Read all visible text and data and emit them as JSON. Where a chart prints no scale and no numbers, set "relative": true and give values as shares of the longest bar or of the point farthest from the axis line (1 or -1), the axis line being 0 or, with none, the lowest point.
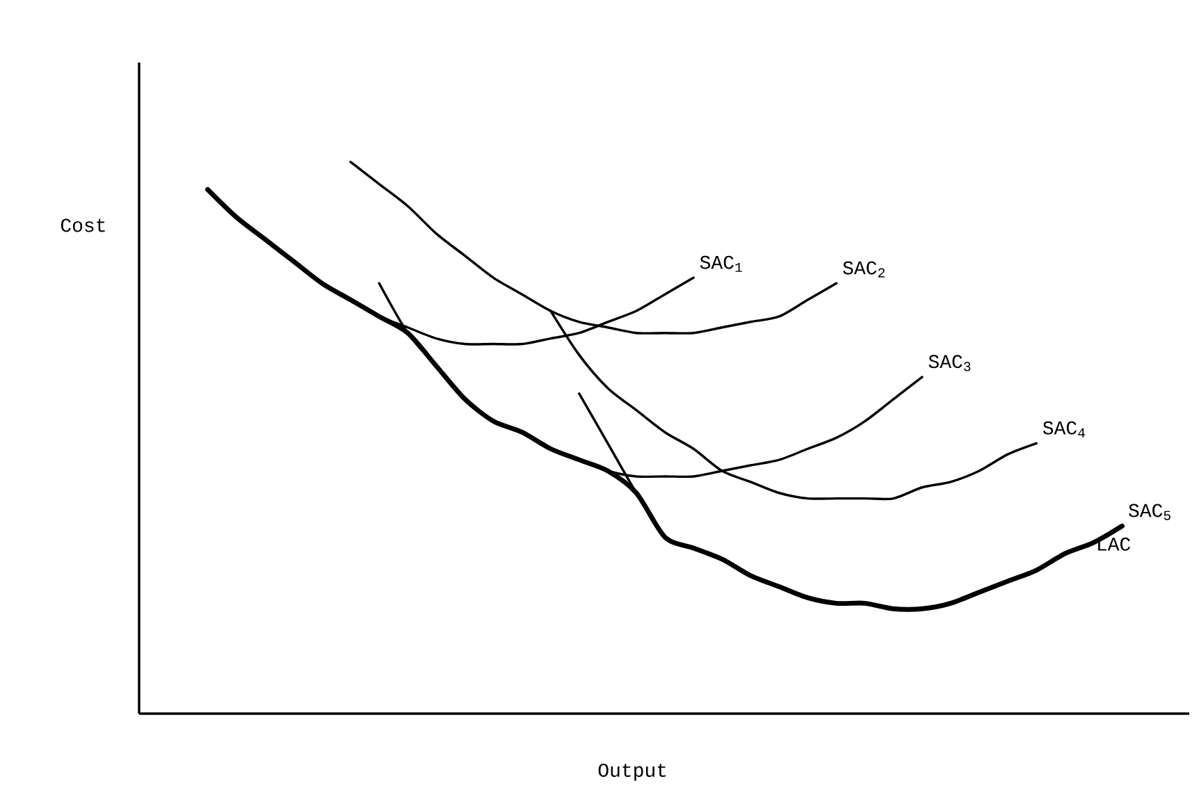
{
  "chart_data": {
    "type": "line",
    "relative": true,
    "xlabel": "Output",
    "ylabel": "Cost",
    "categories": [
      null,
      null,
      null,
      null,
      null,
      null,
      null,
      null,
      null,
      null,
      null,
      null,
      null,
      null,
      null,
      null,
      null,
      null,
      null,
      null,
      null,
      null,
      null,
      null,
      null,
      null,
      null,
      null,
      null,
      null,
      null,
      null,
      null
    ],
    "series": [
      {
        "name": "SAC$_{1}$",
        "color": "#000000",
        "values": [
          0.95,
          0.9,
          0.86,
          0.82,
          0.78,
          0.75,
          0.72,
          0.7,
          0.68,
          0.67,
          0.67,
          0.67,
          0.68,
          0.69,
          0.71,
          0.73,
          0.76,
          0.79,
          null,
          null,
          null,
          null,
          null,
          null,
          null,
          null,
          null,
          null,
          null,
          null,
          null,
          null,
          null
        ]
      },
      {
        "name": "SAC$_{2}$",
        "color": "#000000",
        "values": [
          null,
          null,
          null,
          null,
          null,
          1.0,
          0.96,
          0.92,
          0.87,
          0.83,
          0.79,
          0.76,
          0.73,
          0.71,
          0.7,
          0.69,
          0.69,
          0.69,
          0.7,
          0.71,
          0.72,
          0.75,
          0.78,
          null,
          null,
          null,
          null,
          null,
          null,
          null,
          null,
          null,
          null
        ]
      },
      {
        "name": "SAC$_{3}$",
        "color": "#000000",
        "values": [
          null,
          null,
          null,
          null,
          null,
          null,
          0.78,
          0.69,
          0.63,
          0.57,
          0.53,
          0.51,
          0.48,
          0.46,
          0.44,
          0.43,
          0.43,
          0.43,
          0.44,
          0.45,
          0.46,
          0.48,
          0.5,
          0.53,
          0.57,
          0.61,
          null,
          null,
          null,
          null,
          null,
          null,
          null
        ]
      },
      {
        "name": "SAC$_{4}$",
        "color": "#000000",
        "values": [
          null,
          null,
          null,
          null,
          null,
          null,
          null,
          null,
          null,
          null,
          null,
          null,
          0.73,
          0.65,
          0.59,
          0.55,
          0.51,
          0.48,
          0.44,
          0.42,
          0.4,
          0.39,
          0.39,
          0.39,
          0.39,
          0.41,
          0.42,
          0.44,
          0.47,
          0.49,
          null,
          null,
          null
        ]
      },
      {
        "name": "SAC$_{5}$",
        "color": "#000000",
        "values": [
          null,
          null,
          null,
          null,
          null,
          null,
          null,
          null,
          null,
          null,
          null,
          null,
          null,
          0.58,
          0.49,
          0.4,
          0.32,
          0.3,
          0.28,
          0.25,
          0.23,
          0.21,
          0.2,
          0.2,
          0.19,
          0.19,
          0.2,
          0.22,
          0.24,
          0.26,
          0.29,
          0.31,
          0.34
        ]
      },
      {
        "name": "LAC",
        "color": "#000000",
        "values": [
          0.95,
          0.9,
          0.86,
          0.82,
          0.78,
          0.75,
          0.72,
          0.69,
          0.63,
          0.57,
          0.53,
          0.51,
          0.48,
          0.46,
          0.44,
          0.4,
          0.32,
          0.3,
          0.28,
          0.25,
          0.23,
          0.21,
          0.2,
          0.2,
          0.19,
          0.19,
          0.2,
          0.22,
          0.24,
          0.26,
          0.29,
          0.31,
          0.34
        ]
      }
    ]
  }
}
